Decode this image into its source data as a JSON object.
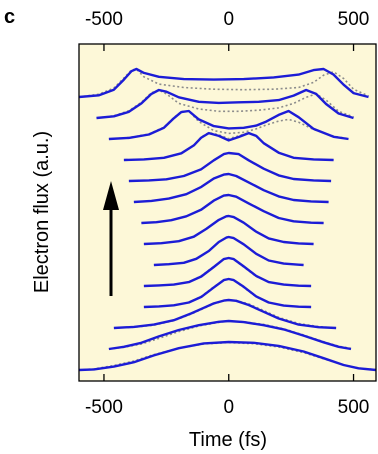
{
  "panel_label": "c",
  "chart_data": {
    "type": "line",
    "title": "",
    "xlabel": "Time (fs)",
    "ylabel": "Electron flux (a.u.)",
    "xlim": [
      -600,
      590
    ],
    "x_ticks": [
      -500,
      0,
      500
    ],
    "x_tick_labels": [
      "-500",
      "0",
      "500"
    ],
    "top_x_ticks": [
      -500,
      0,
      500
    ],
    "top_x_tick_labels": [
      "-500",
      "0",
      "500"
    ],
    "grid": false,
    "legend": "none",
    "y_values_shown": false,
    "arrow_direction": "up",
    "colors": {
      "background": "#fdf8d8",
      "measured": "#1c1cd6",
      "fit": "#8c8c8c",
      "axes": "#000000"
    },
    "series": [
      {
        "offset": 0,
        "x": [
          -600,
          -540,
          -460,
          -380,
          -300,
          -200,
          -100,
          0,
          100,
          200,
          300,
          380,
          460,
          520,
          590
        ],
        "y": [
          0,
          0.02,
          0.12,
          0.28,
          0.52,
          0.78,
          0.95,
          1.0,
          0.97,
          0.86,
          0.66,
          0.42,
          0.18,
          0.06,
          0.0
        ],
        "fit": [
          0,
          0.04,
          0.16,
          0.32,
          0.55,
          0.78,
          0.93,
          0.98,
          0.94,
          0.82,
          0.62,
          0.4,
          0.18,
          0.07,
          0.01
        ]
      },
      {
        "offset": 1,
        "x": [
          -480,
          -420,
          -350,
          -280,
          -200,
          -120,
          -40,
          0,
          60,
          140,
          220,
          300,
          380,
          440,
          490
        ],
        "y": [
          0,
          0.08,
          0.22,
          0.45,
          0.68,
          0.85,
          0.97,
          1.0,
          0.96,
          0.85,
          0.7,
          0.48,
          0.24,
          0.08,
          0.0
        ],
        "fit": [
          0,
          0.06,
          0.18,
          0.38,
          0.62,
          0.82,
          0.95,
          1.0,
          0.97,
          0.88,
          0.72,
          0.5,
          0.26,
          0.1,
          0.02
        ]
      },
      {
        "offset": 2,
        "x": [
          -460,
          -380,
          -300,
          -220,
          -150,
          -100,
          -60,
          -20,
          0,
          30,
          80,
          140,
          200,
          280,
          360,
          430
        ],
        "y": [
          0,
          0.04,
          0.12,
          0.28,
          0.52,
          0.72,
          0.88,
          0.98,
          1.0,
          0.97,
          0.82,
          0.58,
          0.34,
          0.12,
          0.03,
          0.0
        ],
        "fit": [
          0,
          0.03,
          0.1,
          0.26,
          0.5,
          0.7,
          0.86,
          0.97,
          1.0,
          0.98,
          0.86,
          0.62,
          0.38,
          0.16,
          0.05,
          0.0
        ]
      },
      {
        "offset": 3,
        "x": [
          -340,
          -280,
          -220,
          -160,
          -110,
          -60,
          -20,
          0,
          20,
          60,
          110,
          160,
          220,
          280,
          330
        ],
        "y": [
          0,
          0.02,
          0.06,
          0.16,
          0.36,
          0.7,
          0.96,
          1.0,
          0.96,
          0.72,
          0.38,
          0.16,
          0.05,
          0.01,
          0.0
        ],
        "fit": [
          0,
          0.02,
          0.06,
          0.16,
          0.38,
          0.72,
          0.96,
          1.0,
          0.95,
          0.7,
          0.36,
          0.16,
          0.05,
          0.01,
          0.0
        ]
      },
      {
        "offset": 4,
        "x": [
          -340,
          -280,
          -220,
          -160,
          -110,
          -60,
          -20,
          0,
          20,
          60,
          110,
          160,
          220,
          280,
          330
        ],
        "y": [
          0,
          0.02,
          0.05,
          0.14,
          0.34,
          0.68,
          0.96,
          1.0,
          0.96,
          0.7,
          0.36,
          0.14,
          0.05,
          0.01,
          0.0
        ],
        "fit": [
          0,
          0.02,
          0.05,
          0.14,
          0.36,
          0.7,
          0.96,
          1.0,
          0.95,
          0.68,
          0.34,
          0.14,
          0.05,
          0.01,
          0.0
        ]
      },
      {
        "offset": 5,
        "x": [
          -300,
          -240,
          -180,
          -130,
          -80,
          -40,
          -10,
          0,
          20,
          60,
          110,
          160,
          220,
          280,
          300
        ],
        "y": [
          0,
          0.03,
          0.08,
          0.22,
          0.5,
          0.82,
          0.98,
          1.0,
          0.96,
          0.74,
          0.4,
          0.16,
          0.05,
          0.01,
          0.0
        ],
        "fit": [
          0,
          0.02,
          0.08,
          0.22,
          0.5,
          0.82,
          0.98,
          1.0,
          0.96,
          0.74,
          0.4,
          0.16,
          0.05,
          0.01,
          0.0
        ]
      },
      {
        "offset": 6,
        "x": [
          -340,
          -270,
          -200,
          -140,
          -90,
          -40,
          -10,
          0,
          20,
          60,
          110,
          160,
          220,
          280,
          340
        ],
        "y": [
          0,
          0.03,
          0.1,
          0.26,
          0.54,
          0.86,
          0.99,
          1.0,
          0.96,
          0.76,
          0.44,
          0.2,
          0.07,
          0.02,
          0.0
        ],
        "fit": [
          0,
          0.03,
          0.1,
          0.26,
          0.54,
          0.86,
          0.99,
          1.0,
          0.96,
          0.76,
          0.44,
          0.2,
          0.07,
          0.02,
          0.0
        ]
      },
      {
        "offset": 7,
        "x": [
          -350,
          -290,
          -230,
          -170,
          -110,
          -60,
          -20,
          0,
          30,
          80,
          140,
          200,
          260,
          330,
          380
        ],
        "y": [
          0,
          0.03,
          0.1,
          0.24,
          0.48,
          0.8,
          0.98,
          1.0,
          0.94,
          0.7,
          0.42,
          0.18,
          0.06,
          0.01,
          0.0
        ],
        "fit": [
          0,
          0.03,
          0.1,
          0.24,
          0.48,
          0.8,
          0.98,
          1.0,
          0.94,
          0.7,
          0.42,
          0.18,
          0.06,
          0.01,
          0.0
        ]
      },
      {
        "offset": 8,
        "x": [
          -380,
          -310,
          -240,
          -170,
          -110,
          -60,
          -20,
          0,
          30,
          80,
          140,
          200,
          260,
          330,
          400
        ],
        "y": [
          0,
          0.04,
          0.12,
          0.28,
          0.54,
          0.84,
          0.98,
          1.0,
          0.93,
          0.7,
          0.42,
          0.2,
          0.07,
          0.02,
          0.0
        ],
        "fit": [
          0,
          0.04,
          0.12,
          0.28,
          0.54,
          0.84,
          0.98,
          1.0,
          0.93,
          0.7,
          0.42,
          0.2,
          0.07,
          0.02,
          0.0
        ]
      },
      {
        "offset": 9,
        "x": [
          -400,
          -320,
          -250,
          -180,
          -110,
          -60,
          -20,
          0,
          40,
          80,
          140,
          200,
          260,
          340,
          410
        ],
        "y": [
          0,
          0.02,
          0.06,
          0.18,
          0.42,
          0.74,
          0.96,
          1.0,
          0.96,
          0.74,
          0.44,
          0.2,
          0.07,
          0.02,
          0.0
        ],
        "fit": [
          0,
          0.02,
          0.06,
          0.18,
          0.42,
          0.74,
          0.96,
          1.0,
          0.96,
          0.74,
          0.44,
          0.2,
          0.07,
          0.02,
          0.0
        ]
      },
      {
        "offset": 10,
        "x": [
          -420,
          -340,
          -260,
          -190,
          -140,
          -110,
          -80,
          -40,
          0,
          40,
          80,
          110,
          140,
          200,
          260,
          340,
          420
        ],
        "y": [
          0,
          0.02,
          0.08,
          0.24,
          0.52,
          0.8,
          0.96,
          0.86,
          0.7,
          0.82,
          0.96,
          0.86,
          0.6,
          0.26,
          0.08,
          0.02,
          0.0
        ],
        "fit": [
          0,
          0.02,
          0.08,
          0.24,
          0.52,
          0.82,
          0.98,
          0.9,
          0.76,
          0.86,
          0.98,
          0.88,
          0.6,
          0.26,
          0.08,
          0.02,
          0.0
        ]
      },
      {
        "offset": 11,
        "x": [
          -480,
          -400,
          -320,
          -260,
          -220,
          -190,
          -160,
          -120,
          -60,
          0,
          60,
          110,
          150,
          200,
          240,
          280,
          340,
          420,
          480
        ],
        "y": [
          0,
          0.04,
          0.16,
          0.4,
          0.74,
          0.96,
          1.0,
          0.7,
          0.46,
          0.38,
          0.4,
          0.48,
          0.62,
          0.86,
          1.0,
          0.78,
          0.36,
          0.08,
          0.0
        ],
        "fit": [
          0,
          0.05,
          0.18,
          0.42,
          0.76,
          0.98,
          1.0,
          0.62,
          0.3,
          0.2,
          0.24,
          0.36,
          0.5,
          0.64,
          0.7,
          0.6,
          0.34,
          0.1,
          0.01
        ]
      },
      {
        "offset": 12,
        "x": [
          -530,
          -460,
          -400,
          -350,
          -310,
          -280,
          -250,
          -200,
          -120,
          -40,
          40,
          120,
          200,
          260,
          310,
          350,
          390,
          440,
          500
        ],
        "y": [
          0,
          0.06,
          0.22,
          0.52,
          0.86,
          1.0,
          0.94,
          0.74,
          0.58,
          0.54,
          0.56,
          0.58,
          0.64,
          0.8,
          1.0,
          0.86,
          0.5,
          0.16,
          0.0
        ],
        "fit": [
          0,
          0.08,
          0.26,
          0.56,
          0.9,
          1.0,
          0.86,
          0.52,
          0.32,
          0.24,
          0.24,
          0.28,
          0.36,
          0.52,
          0.74,
          0.86,
          0.64,
          0.24,
          0.04
        ]
      },
      {
        "offset": 13,
        "x": [
          -600,
          -520,
          -460,
          -420,
          -390,
          -370,
          -340,
          -280,
          -180,
          -60,
          60,
          180,
          280,
          340,
          380,
          420,
          460,
          500,
          560
        ],
        "y": [
          0,
          0.06,
          0.26,
          0.62,
          0.92,
          1.0,
          0.86,
          0.72,
          0.64,
          0.62,
          0.64,
          0.7,
          0.8,
          0.96,
          1.0,
          0.8,
          0.44,
          0.14,
          0.0
        ],
        "fit": [
          0,
          0.1,
          0.32,
          0.68,
          0.96,
          1.0,
          0.72,
          0.46,
          0.34,
          0.28,
          0.26,
          0.28,
          0.34,
          0.52,
          0.78,
          0.9,
          0.66,
          0.28,
          0.04
        ]
      }
    ]
  }
}
